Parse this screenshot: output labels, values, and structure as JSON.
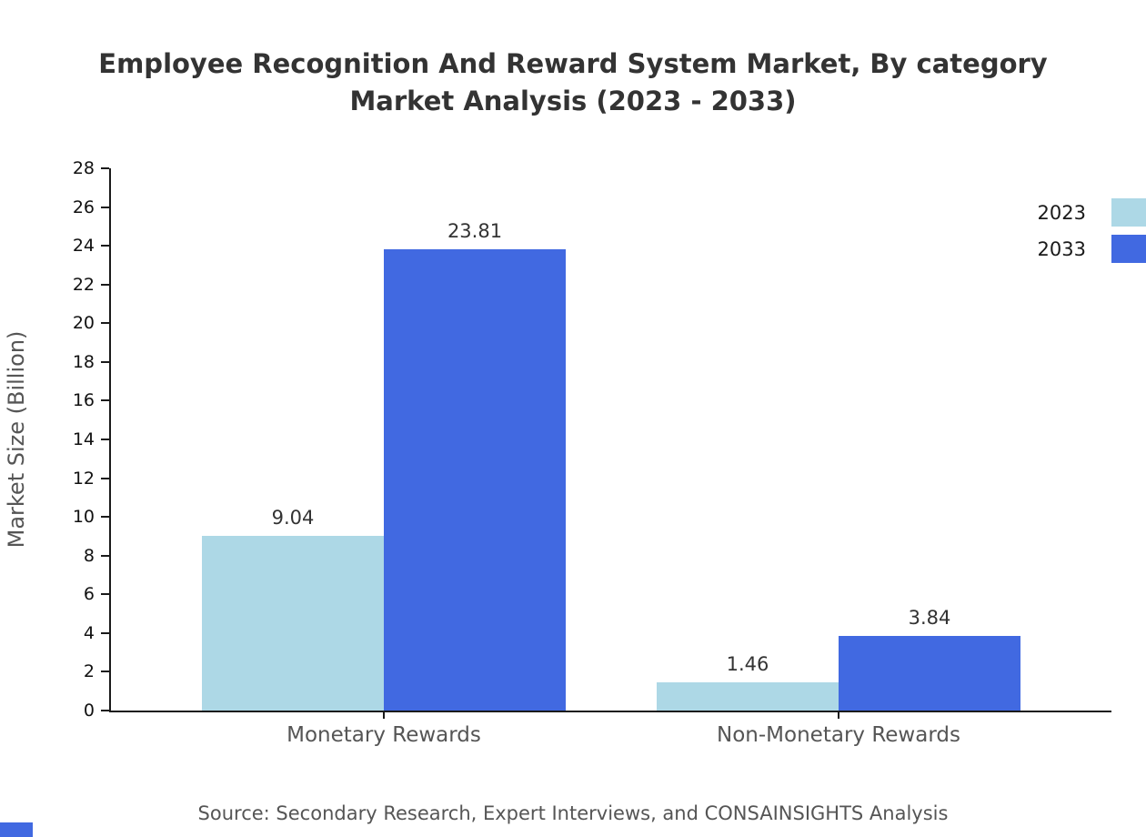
{
  "title": {
    "line1": "Employee Recognition And Reward System Market, By category",
    "line2": "Market Analysis (2023 - 2033)"
  },
  "chart_data": {
    "type": "bar",
    "categories": [
      "Monetary Rewards",
      "Non-Monetary Rewards"
    ],
    "series": [
      {
        "name": "2023",
        "color": "#ADD8E6",
        "values": [
          9.04,
          1.46
        ]
      },
      {
        "name": "2033",
        "color": "#4169E1",
        "values": [
          23.81,
          3.84
        ]
      }
    ],
    "title": "Employee Recognition And Reward System Market, By category Market Analysis (2023 - 2033)",
    "xlabel": "",
    "ylabel": "Market Size (Billion)",
    "ylim": [
      0,
      28
    ],
    "ytick_step": 2,
    "grid": false,
    "legend_position": "top-right",
    "value_labels": [
      "9.04",
      "23.81",
      "1.46",
      "3.84"
    ]
  },
  "source": "Source: Secondary Research, Expert Interviews, and CONSAINSIGHTS Analysis"
}
